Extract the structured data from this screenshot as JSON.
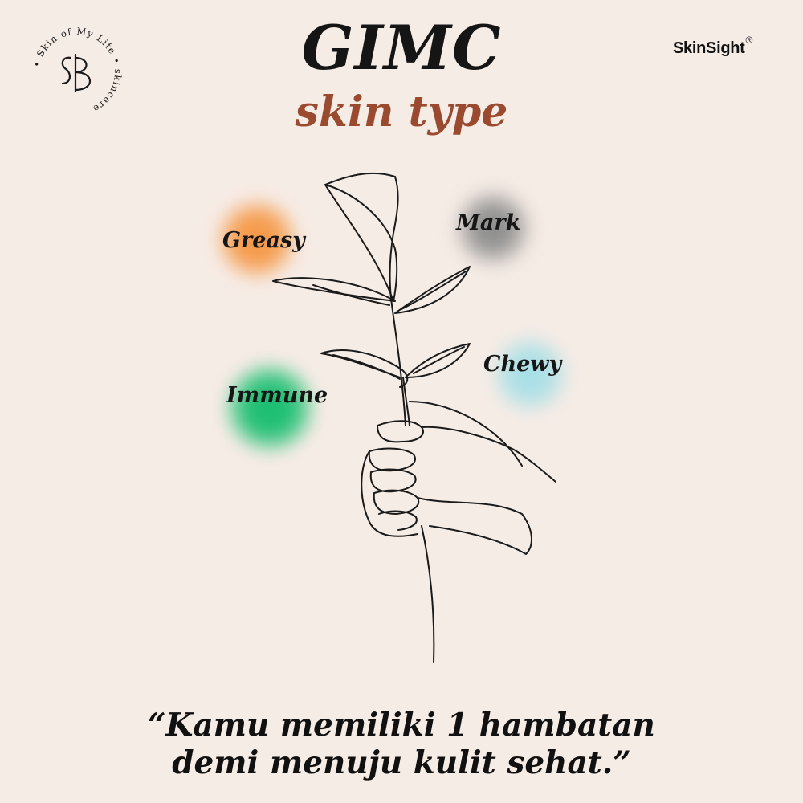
{
  "logo": {
    "ring_text": "• Skin of My Life • skincare",
    "monogram": "SB"
  },
  "brand": {
    "name": "SkinSight",
    "registered_mark": "®"
  },
  "header": {
    "title": "GIMC",
    "subtitle": "skin type"
  },
  "skin_types": [
    {
      "label": "Greasy",
      "color": "#f59a4a"
    },
    {
      "label": "Mark",
      "color": "#8f8f8f"
    },
    {
      "label": "Chewy",
      "color": "#a8dfe6"
    },
    {
      "label": "Immune",
      "color": "#1fbf73"
    }
  ],
  "quote": {
    "line1": "“Kamu memiliki 1 hambatan",
    "line2": "demi menuju kulit sehat.”"
  },
  "colors": {
    "background": "#f6ece6",
    "title": "#151515",
    "subtitle": "#9a4a2f"
  }
}
